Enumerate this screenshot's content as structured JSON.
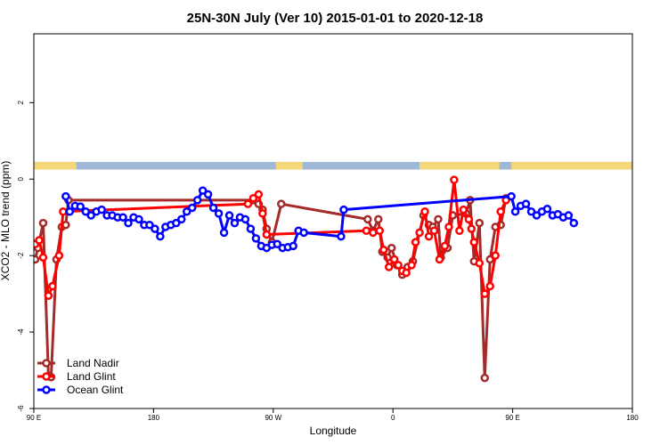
{
  "chart_data": {
    "type": "line",
    "title": "25N-30N July (Ver 10)   2015-01-01 to 2020-12-18",
    "xlabel": "Longitude",
    "ylabel": "XCO2 - MLO trend (ppm)",
    "xlim": [
      90,
      450
    ],
    "ylim": [
      -6.0,
      3.8
    ],
    "x_ticks": [
      {
        "value": 90,
        "label": "90 E"
      },
      {
        "value": 180,
        "label": "180"
      },
      {
        "value": 270,
        "label": "90 W"
      },
      {
        "value": 360,
        "label": "0"
      },
      {
        "value": 450,
        "label": "90 E"
      },
      {
        "value": 540,
        "label": "180"
      }
    ],
    "x_domain": [
      90,
      540
    ],
    "y_ticks": [
      {
        "value": -6,
        "label": "-6"
      },
      {
        "value": -4,
        "label": "-4"
      },
      {
        "value": -2,
        "label": "-2"
      },
      {
        "value": 0,
        "label": "0"
      },
      {
        "value": 2,
        "label": "2"
      }
    ],
    "land_sea_band": {
      "y_range": [
        0.25,
        0.45
      ],
      "sea_color": "#9fb8d8",
      "land_color": "#f5d77a",
      "land_segments": [
        [
          90,
          122
        ],
        [
          272,
          292
        ],
        [
          380,
          440
        ],
        [
          449,
          546
        ]
      ]
    },
    "legend_position": "bottom-left",
    "series": [
      {
        "name": "Land Nadir",
        "color": "#a52a2a",
        "points": [
          [
            91,
            -2.1
          ],
          [
            93,
            -1.8
          ],
          [
            97,
            -1.15
          ],
          [
            101,
            -5.15
          ],
          [
            103,
            -5.18
          ],
          [
            107,
            -2.1
          ],
          [
            111,
            -1.25
          ],
          [
            114,
            -1.2
          ],
          [
            116,
            -0.55
          ],
          [
            255,
            -0.55
          ],
          [
            259,
            -0.65
          ],
          [
            262,
            -0.8
          ],
          [
            265,
            -1.3
          ],
          [
            269,
            -1.65
          ],
          [
            276,
            -0.65
          ],
          [
            341,
            -1.05
          ],
          [
            345,
            -1.35
          ],
          [
            349,
            -1.05
          ],
          [
            352,
            -1.9
          ],
          [
            356,
            -2.05
          ],
          [
            359,
            -1.8
          ],
          [
            363,
            -2.25
          ],
          [
            367,
            -2.5
          ],
          [
            371,
            -2.3
          ],
          [
            375,
            -2.15
          ],
          [
            383,
            -0.95
          ],
          [
            387,
            -1.2
          ],
          [
            390,
            -1.25
          ],
          [
            394,
            -1.05
          ],
          [
            396,
            -2.05
          ],
          [
            401,
            -1.8
          ],
          [
            405,
            -0.95
          ],
          [
            415,
            -0.9
          ],
          [
            418,
            -0.55
          ],
          [
            421,
            -2.15
          ],
          [
            425,
            -1.15
          ],
          [
            429,
            -5.2
          ],
          [
            433,
            -2.1
          ],
          [
            437,
            -1.25
          ],
          [
            441,
            -1.2
          ],
          [
            445,
            -0.5
          ]
        ]
      },
      {
        "name": "Land Glint",
        "color": "#ff0000",
        "points": [
          [
            91,
            -1.7
          ],
          [
            94,
            -1.6
          ],
          [
            97,
            -2.05
          ],
          [
            101,
            -3.05
          ],
          [
            104,
            -2.8
          ],
          [
            109,
            -2.0
          ],
          [
            112,
            -0.85
          ],
          [
            251,
            -0.65
          ],
          [
            255,
            -0.5
          ],
          [
            259,
            -0.4
          ],
          [
            262,
            -0.9
          ],
          [
            265,
            -1.45
          ],
          [
            340,
            -1.35
          ],
          [
            345,
            -1.4
          ],
          [
            350,
            -1.35
          ],
          [
            353,
            -1.85
          ],
          [
            357,
            -2.3
          ],
          [
            361,
            -2.1
          ],
          [
            364,
            -2.25
          ],
          [
            367,
            -2.4
          ],
          [
            370,
            -2.45
          ],
          [
            374,
            -2.25
          ],
          [
            377,
            -1.65
          ],
          [
            380,
            -1.4
          ],
          [
            384,
            -0.85
          ],
          [
            387,
            -1.5
          ],
          [
            391,
            -1.35
          ],
          [
            395,
            -2.1
          ],
          [
            399,
            -1.75
          ],
          [
            402,
            -1.25
          ],
          [
            406,
            -0.02
          ],
          [
            410,
            -1.35
          ],
          [
            413,
            -0.8
          ],
          [
            417,
            -1.05
          ],
          [
            419,
            -1.3
          ],
          [
            421,
            -1.65
          ],
          [
            425,
            -2.2
          ],
          [
            429,
            -3.0
          ],
          [
            433,
            -2.8
          ],
          [
            437,
            -2.0
          ],
          [
            441,
            -0.85
          ],
          [
            445,
            -0.55
          ]
        ]
      },
      {
        "name": "Ocean Glint",
        "color": "#0000ff",
        "points": [
          [
            114,
            -0.45
          ],
          [
            117,
            -0.85
          ],
          [
            121,
            -0.7
          ],
          [
            125,
            -0.72
          ],
          [
            129,
            -0.85
          ],
          [
            133,
            -0.95
          ],
          [
            137,
            -0.85
          ],
          [
            141,
            -0.8
          ],
          [
            145,
            -0.95
          ],
          [
            149,
            -0.95
          ],
          [
            153,
            -1.0
          ],
          [
            157,
            -1.0
          ],
          [
            161,
            -1.15
          ],
          [
            165,
            -1.0
          ],
          [
            169,
            -1.05
          ],
          [
            173,
            -1.2
          ],
          [
            177,
            -1.2
          ],
          [
            181,
            -1.3
          ],
          [
            185,
            -1.5
          ],
          [
            189,
            -1.25
          ],
          [
            193,
            -1.2
          ],
          [
            197,
            -1.15
          ],
          [
            201,
            -1.05
          ],
          [
            205,
            -0.85
          ],
          [
            209,
            -0.75
          ],
          [
            213,
            -0.55
          ],
          [
            217,
            -0.3
          ],
          [
            221,
            -0.4
          ],
          [
            225,
            -0.75
          ],
          [
            229,
            -0.9
          ],
          [
            233,
            -1.4
          ],
          [
            237,
            -0.95
          ],
          [
            241,
            -1.15
          ],
          [
            245,
            -1.0
          ],
          [
            249,
            -1.05
          ],
          [
            253,
            -1.3
          ],
          [
            257,
            -1.55
          ],
          [
            261,
            -1.75
          ],
          [
            265,
            -1.8
          ],
          [
            269,
            -1.72
          ],
          [
            273,
            -1.7
          ],
          [
            277,
            -1.8
          ],
          [
            281,
            -1.78
          ],
          [
            285,
            -1.75
          ],
          [
            289,
            -1.35
          ],
          [
            293,
            -1.4
          ],
          [
            321,
            -1.5
          ],
          [
            323,
            -0.8
          ],
          [
            449,
            -0.45
          ],
          [
            452,
            -0.85
          ],
          [
            456,
            -0.7
          ],
          [
            460,
            -0.65
          ],
          [
            464,
            -0.85
          ],
          [
            468,
            -0.95
          ],
          [
            472,
            -0.85
          ],
          [
            476,
            -0.78
          ],
          [
            480,
            -0.95
          ],
          [
            484,
            -0.92
          ],
          [
            488,
            -1.0
          ],
          [
            492,
            -0.95
          ],
          [
            496,
            -1.15
          ]
        ]
      }
    ]
  }
}
